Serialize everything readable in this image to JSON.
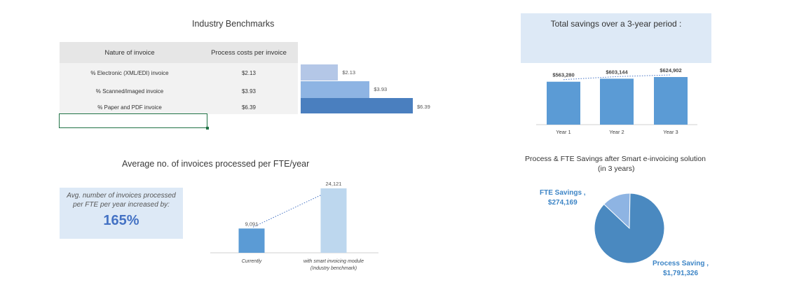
{
  "benchmarks": {
    "title": "Industry Benchmarks",
    "header": {
      "nature": "Nature of invoice",
      "cost": "Process costs per invoice"
    },
    "rows": [
      {
        "nature": "% Electronic (XML/EDI) invoice",
        "cost": "$2.13",
        "value": 2.13,
        "bar_label": "$2.13",
        "color": "#b4c7e7"
      },
      {
        "nature": "% Scanned/imaged invoice",
        "cost": "$3.93",
        "value": 3.93,
        "bar_label": "$3.93",
        "color": "#8eb4e3"
      },
      {
        "nature": "% Paper and PDF invoice",
        "cost": "$6.39",
        "value": 6.39,
        "bar_label": "$6.39",
        "color": "#4a7fbf"
      }
    ]
  },
  "fte": {
    "title": "Average no. of invoices processed per FTE/year",
    "info_text": "Avg. number of invoices processed per FTE per year increased by:",
    "info_pct": "165%",
    "bars": [
      {
        "label_lines": [
          "Currently"
        ],
        "value": 9091,
        "value_label": "9,091",
        "color": "#5b9bd5"
      },
      {
        "label_lines": [
          "with smart invoicing module",
          "(Industry benchmark)"
        ],
        "value": 24121,
        "value_label": "24,121",
        "color": "#bdd7ee"
      }
    ]
  },
  "savings": {
    "title": "Total savings over a 3-year period :",
    "bars": [
      {
        "label": "Year 1",
        "value": 563280,
        "value_label": "$563,280"
      },
      {
        "label": "Year 2",
        "value": 603144,
        "value_label": "$603,144"
      },
      {
        "label": "Year 3",
        "value": 624902,
        "value_label": "$624,902"
      }
    ],
    "bar_color": "#5b9bd5"
  },
  "pie": {
    "title_line1": "Process & FTE Savings after Smart e-invoicing solution",
    "title_line2": "(in 3 years)",
    "slices": [
      {
        "name_line1": "FTE Savings ,",
        "name_line2": "$274,169",
        "value": 274169,
        "color": "#8eb4e3"
      },
      {
        "name_line1": "Process Saving ,",
        "name_line2": "$1,791,326",
        "value": 1791326,
        "color": "#4a89c0"
      }
    ],
    "label_color": "#3d85c6"
  },
  "chart_data": [
    {
      "type": "bar",
      "title": "Industry Benchmarks",
      "categories": [
        "% Electronic (XML/EDI) invoice",
        "% Scanned/imaged invoice",
        "% Paper and PDF invoice"
      ],
      "values": [
        2.13,
        3.93,
        6.39
      ],
      "ylabel": "Process costs per invoice"
    },
    {
      "type": "bar",
      "title": "Average no. of invoices processed per FTE/year",
      "categories": [
        "Currently",
        "with smart invoicing module (Industry benchmark)"
      ],
      "values": [
        9091,
        24121
      ]
    },
    {
      "type": "bar",
      "title": "Total savings over a 3-year period :",
      "categories": [
        "Year 1",
        "Year 2",
        "Year 3"
      ],
      "values": [
        563280,
        603144,
        624902
      ]
    },
    {
      "type": "pie",
      "title": "Process & FTE Savings after Smart e-invoicing solution (in 3 years)",
      "categories": [
        "FTE Savings",
        "Process Saving"
      ],
      "values": [
        274169,
        1791326
      ]
    }
  ]
}
